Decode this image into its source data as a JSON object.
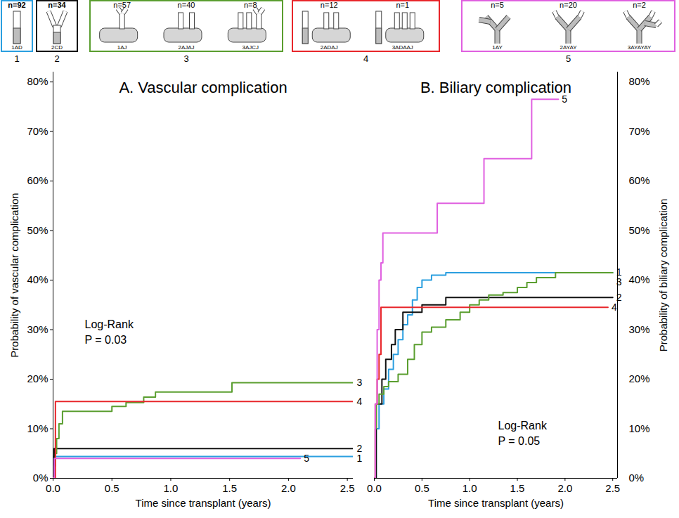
{
  "panels": [
    {
      "number": "1",
      "color": "#2b9fe0",
      "items": [
        {
          "n": "n=92",
          "code": "1AD"
        }
      ]
    },
    {
      "number": "2",
      "color": "#111111",
      "items": [
        {
          "n": "n=34",
          "code": "2CD"
        }
      ]
    },
    {
      "number": "3",
      "color": "#5a9e2f",
      "items": [
        {
          "n": "n=57",
          "code": "1AJ"
        },
        {
          "n": "n=40",
          "code": "2AJAJ"
        },
        {
          "n": "n=8",
          "code": "3AJCJ"
        }
      ]
    },
    {
      "number": "4",
      "color": "#e8262b",
      "items": [
        {
          "n": "n=12",
          "code": "2ADAJ"
        },
        {
          "n": "n=1",
          "code": "3ADAAJ"
        }
      ]
    },
    {
      "number": "5",
      "color": "#e060e0",
      "items": [
        {
          "n": "n=5",
          "code": "1AY"
        },
        {
          "n": "n=20",
          "code": "2AYAY"
        },
        {
          "n": "n=2",
          "code": "3AYAYAY"
        }
      ]
    }
  ],
  "chart_data": [
    {
      "type": "line",
      "line_style": "step",
      "title": "A. Vascular complication",
      "x_label": "Time since transplant (years)",
      "y_label": "Probability of vascular complication",
      "annotation": "Log-Rank",
      "p_value": "P = 0.03",
      "xlim": [
        0,
        2.55
      ],
      "xticks": [
        {
          "value": 0,
          "label": "0.0"
        },
        {
          "value": 0.5,
          "label": "0.5"
        },
        {
          "value": 1,
          "label": "1.0"
        },
        {
          "value": 1.5,
          "label": "1.5"
        },
        {
          "value": 2,
          "label": "2.0"
        },
        {
          "value": 2.5,
          "label": "2.5"
        }
      ],
      "ylim": [
        0,
        82
      ],
      "yticks": [
        {
          "value": 0,
          "label": "0%"
        },
        {
          "value": 10,
          "label": "10%"
        },
        {
          "value": 20,
          "label": "20%"
        },
        {
          "value": 30,
          "label": "30%"
        },
        {
          "value": 40,
          "label": "40%"
        },
        {
          "value": 50,
          "label": "50%"
        },
        {
          "value": 60,
          "label": "60%"
        },
        {
          "value": 70,
          "label": "70%"
        },
        {
          "value": 80,
          "label": "80%"
        }
      ],
      "series": [
        {
          "name": "1",
          "color": "#2b9fe0",
          "x": [
            0,
            0.01,
            2.55
          ],
          "values": [
            0,
            4.4,
            4.4
          ]
        },
        {
          "name": "2",
          "color": "#111111",
          "x": [
            0,
            0.01,
            2.55
          ],
          "values": [
            0,
            6,
            6
          ]
        },
        {
          "name": "3",
          "color": "#5a9e2f",
          "x": [
            0,
            0.01,
            0.02,
            0.03,
            0.05,
            0.08,
            0.5,
            0.62,
            0.77,
            0.87,
            1.52,
            2.55
          ],
          "values": [
            0,
            2.5,
            5,
            8,
            11,
            13.5,
            14.5,
            15.3,
            16.4,
            17.4,
            19.3,
            19.3
          ]
        },
        {
          "name": "4",
          "color": "#e8262b",
          "x": [
            0,
            0.02,
            2.55
          ],
          "values": [
            0,
            15.5,
            15.5
          ]
        },
        {
          "name": "5",
          "color": "#e060e0",
          "x": [
            0,
            0.01,
            2.1
          ],
          "values": [
            0,
            4,
            4
          ]
        }
      ]
    },
    {
      "type": "line",
      "line_style": "step",
      "title": "B. Biliary complication",
      "x_label": "Time since transplant (years)",
      "y_label": "Probability of biliary complication",
      "annotation": "Log-Rank",
      "p_value": "P = 0.05",
      "xlim": [
        0,
        2.55
      ],
      "xticks": [
        {
          "value": 0,
          "label": "0.0"
        },
        {
          "value": 0.5,
          "label": "0.5"
        },
        {
          "value": 1,
          "label": "1.0"
        },
        {
          "value": 1.5,
          "label": "1.5"
        },
        {
          "value": 2,
          "label": "2.0"
        },
        {
          "value": 2.5,
          "label": "2.5"
        }
      ],
      "ylim": [
        0,
        82
      ],
      "yticks": [
        {
          "value": 0,
          "label": "0%"
        },
        {
          "value": 10,
          "label": "10%"
        },
        {
          "value": 20,
          "label": "20%"
        },
        {
          "value": 30,
          "label": "30%"
        },
        {
          "value": 40,
          "label": "40%"
        },
        {
          "value": 50,
          "label": "50%"
        },
        {
          "value": 60,
          "label": "60%"
        },
        {
          "value": 70,
          "label": "70%"
        },
        {
          "value": 80,
          "label": "80%"
        }
      ],
      "series": [
        {
          "name": "1",
          "color": "#2b9fe0",
          "x": [
            0,
            0.02,
            0.05,
            0.1,
            0.15,
            0.2,
            0.25,
            0.3,
            0.35,
            0.4,
            0.45,
            0.5,
            0.6,
            0.75,
            2.5
          ],
          "values": [
            0,
            10,
            15,
            18,
            22,
            25,
            28,
            31,
            33,
            36,
            38.5,
            40,
            41,
            41.5,
            41.5
          ]
        },
        {
          "name": "2",
          "color": "#111111",
          "x": [
            0,
            0.02,
            0.08,
            0.12,
            0.18,
            0.22,
            0.3,
            0.5,
            0.75,
            2.5
          ],
          "values": [
            0,
            15,
            20,
            24,
            27,
            30,
            33.5,
            35,
            36.5,
            36.5
          ]
        },
        {
          "name": "3",
          "color": "#5a9e2f",
          "x": [
            0,
            0.01,
            0.02,
            0.05,
            0.1,
            0.15,
            0.25,
            0.35,
            0.42,
            0.5,
            0.6,
            0.75,
            0.9,
            1.0,
            1.1,
            1.2,
            1.35,
            1.5,
            1.6,
            1.7,
            1.9,
            2.5
          ],
          "values": [
            0,
            10,
            15,
            17,
            18.5,
            19.5,
            21,
            24,
            27,
            29.5,
            30.5,
            32,
            33.5,
            35,
            36,
            37,
            37.5,
            38.5,
            39.5,
            40.5,
            41.5,
            41.5
          ]
        },
        {
          "name": "4",
          "color": "#e8262b",
          "x": [
            0,
            0.01,
            0.03,
            0.05,
            0.07,
            2.45
          ],
          "values": [
            0,
            15,
            20,
            25,
            34.5,
            34.5
          ]
        },
        {
          "name": "5",
          "color": "#e060e0",
          "x": [
            0,
            0.01,
            0.03,
            0.05,
            0.07,
            0.09,
            0.66,
            1.15,
            1.65,
            1.93
          ],
          "values": [
            0,
            15,
            30,
            40,
            43.5,
            49.5,
            55.5,
            64.5,
            76.5,
            76.5
          ]
        }
      ]
    }
  ]
}
